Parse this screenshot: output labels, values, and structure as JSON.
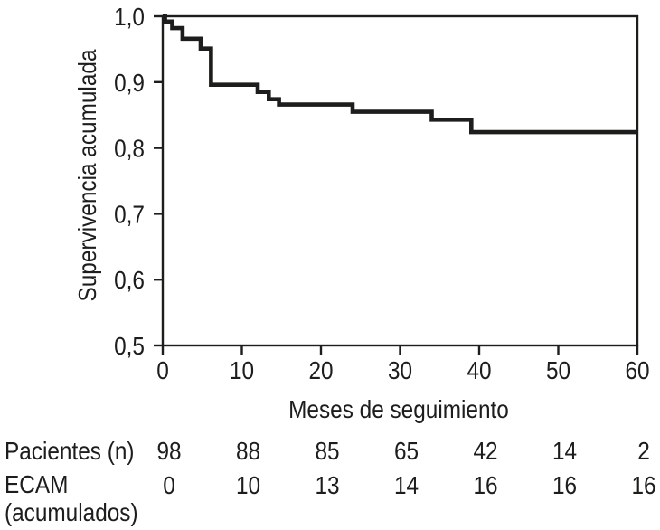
{
  "figure": {
    "background": "#ffffff",
    "ink_color": "#1d1d1b"
  },
  "chart_data": {
    "type": "line",
    "subtype": "kaplan_meier_step",
    "title": "",
    "xlabel": "Meses de seguimiento",
    "ylabel": "Supervivencia acumulada",
    "xlim": [
      0,
      60
    ],
    "ylim": [
      0.5,
      1.0
    ],
    "grid": false,
    "legend": "none",
    "frame": "full-box",
    "x_ticks": [
      {
        "value": 0,
        "label": "0"
      },
      {
        "value": 10,
        "label": "10"
      },
      {
        "value": 20,
        "label": "20"
      },
      {
        "value": 30,
        "label": "30"
      },
      {
        "value": 40,
        "label": "40"
      },
      {
        "value": 50,
        "label": "50"
      },
      {
        "value": 60,
        "label": "60"
      }
    ],
    "y_ticks": [
      {
        "value": 1.0,
        "label": "1,0"
      },
      {
        "value": 0.9,
        "label": "0,9"
      },
      {
        "value": 0.8,
        "label": "0,8"
      },
      {
        "value": 0.7,
        "label": "0,7"
      },
      {
        "value": 0.6,
        "label": "0,6"
      },
      {
        "value": 0.5,
        "label": "0,5"
      }
    ],
    "series": [
      {
        "name": "supervivencia-acumulada",
        "color": "#1d1d1b",
        "line_width": 4.6,
        "steps": [
          {
            "x": 0,
            "y": 1.0
          },
          {
            "x": 0.3,
            "y": 0.992
          },
          {
            "x": 1.2,
            "y": 0.982
          },
          {
            "x": 2.5,
            "y": 0.966
          },
          {
            "x": 4.8,
            "y": 0.951
          },
          {
            "x": 6.1,
            "y": 0.896
          },
          {
            "x": 12.0,
            "y": 0.885
          },
          {
            "x": 13.4,
            "y": 0.874
          },
          {
            "x": 14.7,
            "y": 0.866
          },
          {
            "x": 24.0,
            "y": 0.855
          },
          {
            "x": 34.0,
            "y": 0.843
          },
          {
            "x": 39.0,
            "y": 0.824
          },
          {
            "x": 60.0,
            "y": 0.824
          }
        ]
      }
    ]
  },
  "risk_table": {
    "value_positions_months": [
      0,
      10,
      20,
      30,
      40,
      50,
      60
    ],
    "rows": [
      {
        "label": "Pacientes (n)",
        "label_line2": "",
        "values": [
          "98",
          "88",
          "85",
          "65",
          "42",
          "14",
          "2"
        ]
      },
      {
        "label": "ECAM",
        "label_line2": "(acumulados)",
        "values": [
          "0",
          "10",
          "13",
          "14",
          "16",
          "16",
          "16"
        ]
      }
    ]
  }
}
